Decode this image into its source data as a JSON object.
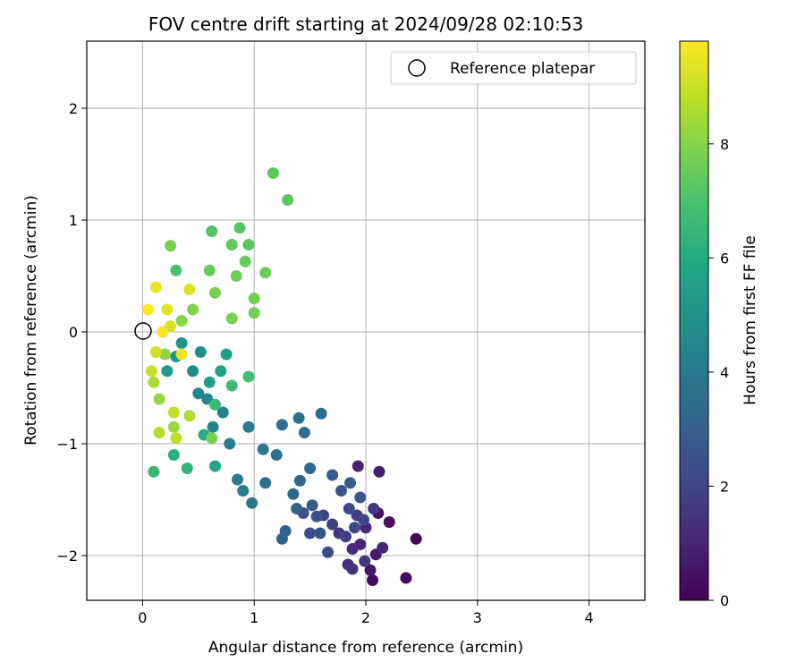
{
  "chart_data": {
    "type": "scatter",
    "title": "FOV centre drift starting at 2024/09/28 02:10:53",
    "xlabel": "Angular distance from reference (arcmin)",
    "ylabel": "Rotation from reference (arcmin)",
    "xlim": [
      -0.5,
      4.5
    ],
    "ylim": [
      -2.4,
      2.6
    ],
    "xticks": [
      0,
      1,
      2,
      3,
      4
    ],
    "xtick_labels": [
      "0",
      "1",
      "2",
      "3",
      "4"
    ],
    "yticks": [
      -2,
      -1,
      0,
      1,
      2
    ],
    "ytick_labels": [
      "−2",
      "−1",
      "0",
      "1",
      "2"
    ],
    "grid": true,
    "legend": {
      "placement": "top-right",
      "entries": [
        {
          "label": "Reference platepar",
          "marker": "open-circle",
          "color": "#000000"
        }
      ]
    },
    "reference_point": {
      "x": 0,
      "y": 0
    },
    "colorbar": {
      "label": "Hours from first FF file",
      "range": [
        0,
        9.8
      ],
      "ticks": [
        0,
        2,
        4,
        6,
        8
      ],
      "tick_labels": [
        "0",
        "2",
        "4",
        "6",
        "8"
      ],
      "colormap": "viridis"
    },
    "series": [
      {
        "color_by": "hours",
        "points": [
          [
            2.45,
            -1.85,
            0.1
          ],
          [
            2.36,
            -2.2,
            0.2
          ],
          [
            2.06,
            -2.22,
            0.3
          ],
          [
            2.21,
            -1.7,
            0.4
          ],
          [
            2.11,
            -1.62,
            0.5
          ],
          [
            2.04,
            -2.13,
            0.6
          ],
          [
            2.09,
            -1.99,
            0.7
          ],
          [
            2.12,
            -1.25,
            0.8
          ],
          [
            1.93,
            -1.2,
            0.9
          ],
          [
            2.0,
            -1.75,
            1.0
          ],
          [
            1.95,
            -1.9,
            1.0
          ],
          [
            2.15,
            -1.93,
            1.1
          ],
          [
            1.88,
            -1.94,
            1.2
          ],
          [
            1.84,
            -2.08,
            1.3
          ],
          [
            1.88,
            -2.12,
            1.4
          ],
          [
            1.99,
            -2.05,
            1.5
          ],
          [
            1.76,
            -1.8,
            1.5
          ],
          [
            2.07,
            -1.58,
            1.6
          ],
          [
            1.92,
            -1.64,
            1.7
          ],
          [
            1.82,
            -1.83,
            1.8
          ],
          [
            1.7,
            -1.72,
            1.9
          ],
          [
            1.62,
            -1.64,
            2.0
          ],
          [
            1.98,
            -1.68,
            2.0
          ],
          [
            1.9,
            -1.75,
            2.1
          ],
          [
            1.85,
            -1.58,
            2.2
          ],
          [
            1.5,
            -1.8,
            2.3
          ],
          [
            1.66,
            -1.97,
            2.3
          ],
          [
            1.44,
            -1.62,
            2.4
          ],
          [
            1.59,
            -1.8,
            2.5
          ],
          [
            1.56,
            -1.65,
            2.5
          ],
          [
            1.78,
            -1.42,
            2.6
          ],
          [
            1.95,
            -1.48,
            2.7
          ],
          [
            1.86,
            -1.35,
            2.8
          ],
          [
            1.7,
            -1.28,
            2.9
          ],
          [
            1.52,
            -1.55,
            2.9
          ],
          [
            1.38,
            -1.58,
            3.0
          ],
          [
            1.28,
            -1.78,
            3.1
          ],
          [
            1.25,
            -1.85,
            3.1
          ],
          [
            1.35,
            -1.45,
            3.2
          ],
          [
            1.41,
            -1.33,
            3.3
          ],
          [
            1.5,
            -1.22,
            3.3
          ],
          [
            1.6,
            -0.73,
            3.4
          ],
          [
            1.45,
            -0.9,
            3.5
          ],
          [
            1.25,
            -0.83,
            3.5
          ],
          [
            1.4,
            -0.77,
            3.6
          ],
          [
            1.2,
            -1.1,
            3.7
          ],
          [
            1.1,
            -1.35,
            3.7
          ],
          [
            0.98,
            -1.53,
            3.8
          ],
          [
            1.08,
            -1.05,
            3.9
          ],
          [
            0.95,
            -0.85,
            4.0
          ],
          [
            0.85,
            -1.32,
            4.0
          ],
          [
            0.9,
            -1.42,
            4.1
          ],
          [
            0.78,
            -1.0,
            4.2
          ],
          [
            0.72,
            -0.72,
            4.3
          ],
          [
            0.63,
            -0.85,
            4.4
          ],
          [
            0.58,
            -0.6,
            4.5
          ],
          [
            0.5,
            -0.55,
            4.6
          ],
          [
            0.45,
            -0.35,
            4.7
          ],
          [
            0.52,
            -0.18,
            4.8
          ],
          [
            0.35,
            -0.1,
            5.0
          ],
          [
            0.3,
            -0.22,
            5.1
          ],
          [
            0.22,
            -0.35,
            5.2
          ],
          [
            0.6,
            -0.45,
            5.4
          ],
          [
            0.75,
            -0.2,
            5.5
          ],
          [
            0.7,
            -0.35,
            5.6
          ],
          [
            0.65,
            -1.2,
            5.8
          ],
          [
            0.55,
            -0.92,
            6.0
          ],
          [
            0.28,
            -1.1,
            6.2
          ],
          [
            0.4,
            -1.22,
            6.3
          ],
          [
            0.1,
            -1.25,
            6.5
          ],
          [
            0.65,
            -0.65,
            6.6
          ],
          [
            0.8,
            -0.48,
            6.7
          ],
          [
            0.95,
            -0.4,
            6.8
          ],
          [
            0.3,
            0.55,
            6.9
          ],
          [
            0.62,
            0.9,
            7.1
          ],
          [
            0.87,
            0.93,
            7.2
          ],
          [
            0.95,
            0.78,
            7.3
          ],
          [
            1.17,
            1.42,
            7.3
          ],
          [
            1.3,
            1.18,
            7.3
          ],
          [
            0.8,
            0.78,
            7.4
          ],
          [
            0.6,
            0.55,
            7.5
          ],
          [
            0.92,
            0.63,
            7.5
          ],
          [
            1.1,
            0.53,
            7.6
          ],
          [
            0.84,
            0.5,
            7.6
          ],
          [
            1.0,
            0.3,
            7.7
          ],
          [
            1.0,
            0.17,
            7.7
          ],
          [
            0.25,
            0.77,
            7.8
          ],
          [
            0.65,
            0.35,
            7.8
          ],
          [
            0.8,
            0.12,
            7.8
          ],
          [
            0.62,
            -0.95,
            7.8
          ],
          [
            0.45,
            0.2,
            7.9
          ],
          [
            0.35,
            0.1,
            8.0
          ],
          [
            0.2,
            -0.2,
            8.1
          ],
          [
            0.15,
            -0.6,
            8.2
          ],
          [
            0.28,
            -0.85,
            8.3
          ],
          [
            0.1,
            -0.45,
            8.5
          ],
          [
            0.42,
            -0.75,
            8.6
          ],
          [
            0.15,
            -0.9,
            8.7
          ],
          [
            0.3,
            -0.95,
            8.8
          ],
          [
            0.28,
            -0.72,
            8.9
          ],
          [
            0.08,
            -0.35,
            9.0
          ],
          [
            0.12,
            -0.18,
            9.1
          ],
          [
            0.25,
            0.05,
            9.2
          ],
          [
            0.42,
            0.38,
            9.3
          ],
          [
            0.22,
            0.2,
            9.4
          ],
          [
            0.12,
            0.4,
            9.5
          ],
          [
            0.35,
            -0.2,
            9.6
          ],
          [
            0.18,
            0.0,
            9.7
          ],
          [
            0.05,
            0.2,
            9.8
          ]
        ]
      }
    ]
  }
}
